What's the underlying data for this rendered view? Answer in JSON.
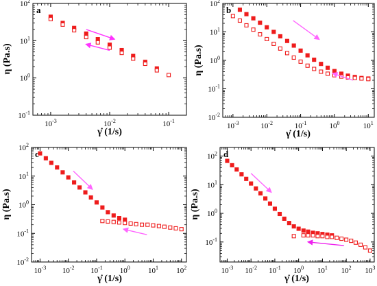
{
  "chart_data": [
    {
      "type": "scatter",
      "panel": "a",
      "xscale": "log",
      "yscale": "log",
      "xlim": [
        0.0005,
        0.2
      ],
      "ylim": [
        0.1,
        100
      ],
      "xticks": [
        0.001,
        0.01,
        0.1
      ],
      "xtick_labels": [
        "10$-3",
        "10$-2",
        "10$-1"
      ],
      "yticks": [
        0.1,
        1,
        10,
        100
      ],
      "ytick_labels": [
        "10$-1",
        "10$0",
        "10$1",
        "10$2"
      ],
      "xlabel": "γ̇ (1/s)",
      "ylabel": "η (Pa.s)",
      "series": [
        {
          "marker": "filled-square",
          "color": "#ee1c1c",
          "x": [
            0.001,
            0.0016,
            0.0025,
            0.004,
            0.0063,
            0.01,
            0.016,
            0.025,
            0.04,
            0.063
          ],
          "y": [
            44,
            30,
            22,
            15.5,
            11,
            7.8,
            5.6,
            3.9,
            2.7,
            1.8
          ]
        },
        {
          "marker": "open-square",
          "color": "#ee1c1c",
          "x": [
            0.001,
            0.0016,
            0.0025,
            0.004,
            0.0063,
            0.01,
            0.016,
            0.025,
            0.04,
            0.063,
            0.1
          ],
          "y": [
            38,
            27,
            19,
            12.5,
            9,
            6.5,
            4.7,
            3.3,
            2.4,
            1.6,
            1.2
          ]
        }
      ],
      "arrows": [
        {
          "direction": "forward",
          "color": "#ff33ff",
          "from": [
            0.004,
            20
          ],
          "to": [
            0.012,
            11
          ]
        },
        {
          "direction": "backward",
          "color": "#ff33ff",
          "from": [
            0.01,
            5.5
          ],
          "to": [
            0.004,
            8
          ]
        }
      ]
    },
    {
      "type": "scatter",
      "panel": "b",
      "xscale": "log",
      "yscale": "log",
      "xlim": [
        0.0005,
        15
      ],
      "ylim": [
        0.01,
        100
      ],
      "xticks": [
        0.001,
        0.01,
        0.1,
        1,
        10
      ],
      "xtick_labels": [
        "10$-3",
        "10$-2",
        "10$-1",
        "10$0",
        "10$1"
      ],
      "yticks": [
        0.01,
        0.1,
        1,
        10,
        100
      ],
      "ytick_labels": [
        "10$-2",
        "10$-1",
        "10$0",
        "10$1",
        "10$2"
      ],
      "xlabel": "γ̇ (1/s)",
      "ylabel": "η (Pa.s)",
      "series": [
        {
          "marker": "filled-square",
          "color": "#ee1c1c",
          "x": [
            0.0016,
            0.0025,
            0.004,
            0.0063,
            0.01,
            0.016,
            0.025,
            0.04,
            0.063,
            0.1,
            0.16,
            0.25,
            0.4,
            0.63,
            1,
            1.6,
            2.5,
            4,
            6.3,
            10
          ],
          "y": [
            60,
            42,
            30,
            21,
            14.5,
            10,
            7,
            4.8,
            3.3,
            2.2,
            1.5,
            1.05,
            0.75,
            0.55,
            0.42,
            0.34,
            0.29,
            0.26,
            0.24,
            0.23
          ]
        },
        {
          "marker": "open-square",
          "color": "#ee1c1c",
          "x": [
            0.001,
            0.0016,
            0.0025,
            0.004,
            0.0063,
            0.01,
            0.016,
            0.025,
            0.04,
            0.063,
            0.1,
            0.16,
            0.25,
            0.4,
            0.63,
            1,
            1.6,
            2.5,
            4,
            6.3,
            10
          ],
          "y": [
            36,
            25,
            17,
            12,
            8.2,
            5.6,
            3.8,
            2.6,
            1.8,
            1.25,
            0.9,
            0.65,
            0.5,
            0.4,
            0.34,
            0.3,
            0.27,
            0.25,
            0.24,
            0.23,
            0.22
          ]
        }
      ],
      "arrows": [
        {
          "direction": "forward",
          "color": "#ff66ff",
          "from": [
            0.06,
            25
          ],
          "to": [
            0.35,
            5.5
          ]
        },
        {
          "direction": "backward",
          "color": "#ff66ff",
          "from": [
            3.5,
            0.2
          ],
          "to": [
            0.9,
            0.35
          ]
        }
      ]
    },
    {
      "type": "scatter",
      "panel": "c",
      "xscale": "log",
      "yscale": "log",
      "xlim": [
        0.0005,
        150
      ],
      "ylim": [
        0.01,
        100
      ],
      "xticks": [
        0.001,
        0.01,
        0.1,
        1,
        10,
        100
      ],
      "xtick_labels": [
        "10$-3",
        "10$-2",
        "10$-1",
        "10$0",
        "10$1",
        "10$2"
      ],
      "yticks": [
        0.01,
        0.1,
        1,
        10,
        100
      ],
      "ytick_labels": [
        "10$-2",
        "10$-1",
        "10$0",
        "10$1",
        "10$2"
      ],
      "xlabel": "γ̇ (1/s)",
      "ylabel": "η (Pa.s)",
      "series": [
        {
          "marker": "filled-square",
          "color": "#ee1c1c",
          "x": [
            0.001,
            0.0016,
            0.0025,
            0.004,
            0.0063,
            0.01,
            0.016,
            0.025,
            0.04,
            0.063,
            0.1,
            0.16,
            0.25,
            0.4,
            0.63,
            1
          ],
          "y": [
            62,
            42,
            29,
            20,
            13.5,
            9,
            6,
            4,
            2.7,
            1.8,
            1.2,
            0.8,
            0.55,
            0.42,
            0.34,
            0.3
          ]
        },
        {
          "marker": "open-square",
          "color": "#ee1c1c",
          "x": [
            0.16,
            0.25,
            0.4,
            0.63,
            1,
            1.6,
            2.5,
            4,
            6.3,
            10,
            16,
            25,
            40,
            63,
            100
          ],
          "y": [
            0.27,
            0.26,
            0.25,
            0.24,
            0.23,
            0.22,
            0.21,
            0.2,
            0.2,
            0.19,
            0.18,
            0.17,
            0.16,
            0.15,
            0.14
          ]
        }
      ],
      "arrows": [
        {
          "direction": "forward",
          "color": "#ff66ff",
          "from": [
            0.015,
            15
          ],
          "to": [
            0.07,
            3.5
          ]
        },
        {
          "direction": "backward",
          "color": "#ff66ff",
          "from": [
            6,
            0.09
          ],
          "to": [
            0.9,
            0.14
          ]
        }
      ]
    },
    {
      "type": "scatter",
      "panel": "d",
      "xscale": "log",
      "yscale": "log",
      "xlim": [
        0.0005,
        1500
      ],
      "ylim": [
        0.02,
        200
      ],
      "xticks": [
        0.001,
        0.01,
        0.1,
        1,
        10,
        100,
        1000
      ],
      "xtick_labels": [
        "10$-3",
        "10$-2",
        "10$-1",
        "10$0",
        "10$1",
        "10$2",
        "10$3"
      ],
      "yticks": [
        0.1,
        1,
        10,
        100
      ],
      "ytick_labels": [
        "10$-1",
        "10$0",
        "10$1",
        "10$2"
      ],
      "xlabel": "γ̇ (1/s)",
      "ylabel": "η (Pa.s)",
      "series": [
        {
          "marker": "filled-square",
          "color": "#ee1c1c",
          "x": [
            0.001,
            0.0016,
            0.0025,
            0.004,
            0.0063,
            0.01,
            0.016,
            0.025,
            0.04,
            0.063,
            0.1,
            0.16,
            0.25,
            0.4,
            0.63,
            1,
            1.6,
            2.5,
            4,
            6.3,
            10,
            16,
            25
          ],
          "y": [
            68,
            48,
            34,
            23,
            16,
            11,
            7.4,
            5,
            3.3,
            2.2,
            1.45,
            0.95,
            0.65,
            0.46,
            0.35,
            0.29,
            0.25,
            0.23,
            0.21,
            0.2,
            0.19,
            0.18,
            0.17
          ]
        },
        {
          "marker": "open-square",
          "color": "#ee1c1c",
          "x": [
            0.63,
            1.6,
            2.5,
            4,
            6.3,
            10,
            16,
            25,
            40,
            63,
            100,
            160,
            250,
            400,
            630,
            1000
          ],
          "y": [
            0.16,
            0.17,
            0.17,
            0.17,
            0.16,
            0.16,
            0.15,
            0.15,
            0.14,
            0.13,
            0.12,
            0.11,
            0.095,
            0.08,
            0.065,
            0.05
          ]
        }
      ],
      "arrows": [
        {
          "direction": "forward",
          "color": "#ff66ff",
          "from": [
            0.01,
            25
          ],
          "to": [
            0.07,
            5.5
          ]
        },
        {
          "direction": "backward",
          "color": "#ee22ee",
          "from": [
            80,
            0.075
          ],
          "to": [
            2.5,
            0.1
          ]
        }
      ]
    }
  ]
}
